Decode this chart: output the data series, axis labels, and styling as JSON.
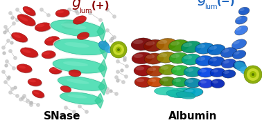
{
  "title_left_color": "#8B0000",
  "title_right_color": "#1560BD",
  "label_color": "#000000",
  "bg_color": "#ffffff",
  "label_left": "SNase",
  "label_right": "Albumin",
  "fig_width": 3.78,
  "fig_height": 1.84,
  "dpi": 100
}
